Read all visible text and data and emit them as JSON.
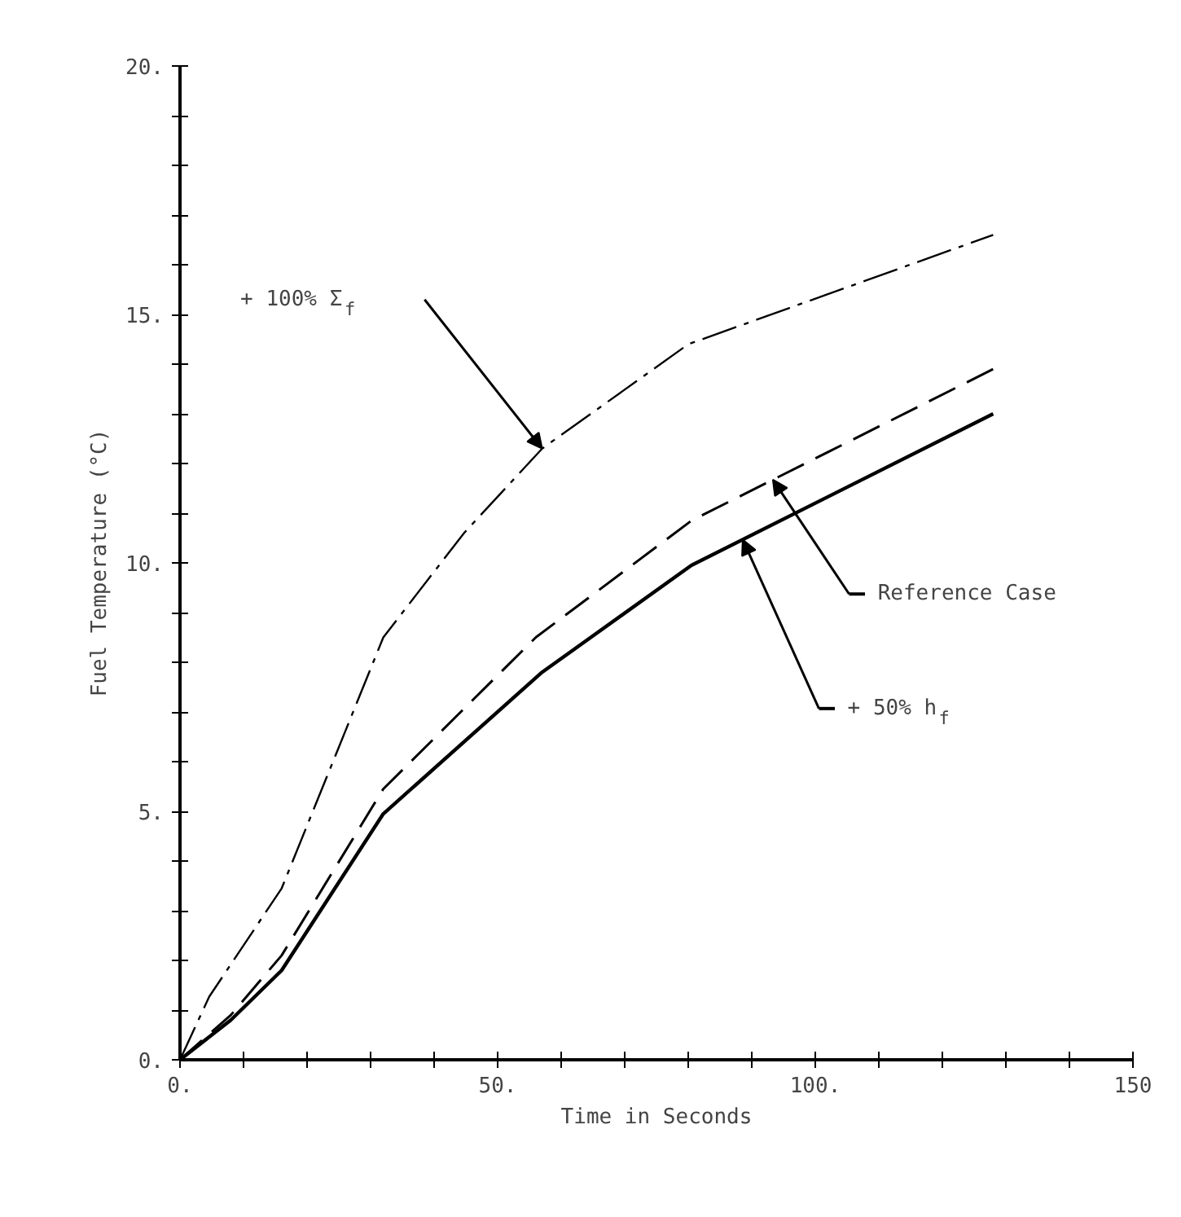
{
  "chart_data": {
    "type": "line",
    "xlabel": "Time in Seconds",
    "ylabel": "Fuel Temperature (°C)",
    "x": [
      0,
      4.6,
      16,
      32,
      44.7,
      57,
      80,
      128
    ],
    "series": [
      {
        "color": "#000000",
        "line_style": "dashdot",
        "values": [
          0,
          1.27,
          3.45,
          8.5,
          10.6,
          12.3,
          14.4,
          16.6
        ]
      },
      {
        "color": "#000000",
        "line_style": "dashed",
        "x": [
          0,
          8,
          16,
          32,
          56,
          80.5,
          128
        ],
        "values": [
          0,
          0.9,
          2.1,
          5.45,
          8.5,
          10.85,
          13.9
        ]
      },
      {
        "color": "#000000",
        "line_style": "solid",
        "x": [
          0,
          8,
          16,
          32,
          57,
          80.5,
          128
        ],
        "values": [
          0,
          0.8,
          1.8,
          4.95,
          7.8,
          9.95,
          13.0
        ]
      }
    ],
    "annotations": [
      "+ 100% Σ$_{f}$",
      "Reference Case",
      "+ 50% h$_{f}$"
    ],
    "xlim": [
      0,
      150
    ],
    "ylim": [
      0,
      20
    ],
    "xticks": [
      {
        "value": 0,
        "label": "0."
      },
      {
        "value": 10,
        "label": null
      },
      {
        "value": 20,
        "label": null
      },
      {
        "value": 30,
        "label": null
      },
      {
        "value": 40,
        "label": null
      },
      {
        "value": 50,
        "label": "50."
      },
      {
        "value": 60,
        "label": null
      },
      {
        "value": 70,
        "label": null
      },
      {
        "value": 80,
        "label": null
      },
      {
        "value": 90,
        "label": null
      },
      {
        "value": 100,
        "label": "100."
      },
      {
        "value": 110,
        "label": null
      },
      {
        "value": 120,
        "label": null
      },
      {
        "value": 130,
        "label": null
      },
      {
        "value": 140,
        "label": null
      },
      150
    ],
    "yticks": [
      {
        "value": 0,
        "label": "0."
      },
      {
        "value": 1,
        "label": null
      },
      {
        "value": 2,
        "label": null
      },
      {
        "value": 3,
        "label": null
      },
      {
        "value": 4,
        "label": null
      },
      {
        "value": 5,
        "label": "5."
      },
      {
        "value": 6,
        "label": null
      },
      {
        "value": 7,
        "label": null
      },
      {
        "value": 8,
        "label": null
      },
      {
        "value": 9,
        "label": null
      },
      {
        "value": 10,
        "label": "10."
      },
      {
        "value": 11,
        "label": null
      },
      {
        "value": 12,
        "label": null
      },
      {
        "value": 13,
        "label": null
      },
      {
        "value": 14,
        "label": null
      },
      {
        "value": 15,
        "label": "15."
      },
      {
        "value": 16,
        "label": null
      },
      {
        "value": 17,
        "label": null
      },
      {
        "value": 18,
        "label": null
      },
      {
        "value": 19,
        "label": null
      },
      {
        "value": 20,
        "label": "20."
      }
    ],
    "grid": false,
    "marker": "none"
  }
}
